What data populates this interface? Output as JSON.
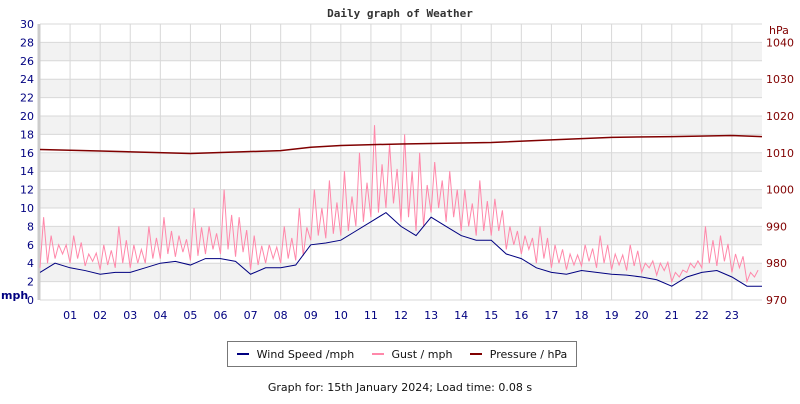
{
  "chart_data": {
    "type": "line",
    "title": "Daily graph of Weather",
    "ylabel": "mph",
    "y2label": "hPa",
    "ylim": [
      0,
      30
    ],
    "yticks": [
      0,
      2,
      4,
      6,
      8,
      10,
      12,
      14,
      16,
      18,
      20,
      22,
      24,
      26,
      28,
      30
    ],
    "y2lim": [
      970,
      1045
    ],
    "y2ticks": [
      970,
      980,
      990,
      1000,
      1010,
      1020,
      1030,
      1040
    ],
    "xlim": [
      0,
      24
    ],
    "xticks": [
      "01",
      "02",
      "03",
      "04",
      "05",
      "06",
      "07",
      "08",
      "09",
      "10",
      "11",
      "12",
      "13",
      "14",
      "15",
      "16",
      "17",
      "18",
      "19",
      "20",
      "21",
      "22",
      "23"
    ],
    "grid": true,
    "colors": {
      "wind": "#000080",
      "gust": "#ff88aa",
      "pressure": "#800000",
      "left_axis": "#000080",
      "right_axis": "#800000"
    },
    "series": [
      {
        "name": "Wind Speed /mph",
        "x_step_hours": 0.5,
        "values": [
          3,
          4,
          3.5,
          3.2,
          2.8,
          3,
          3,
          3.5,
          4,
          4.2,
          3.8,
          4.5,
          4.5,
          4.2,
          2.8,
          3.5,
          3.5,
          3.8,
          6,
          6.2,
          6.5,
          7.5,
          8.5,
          9.5,
          8,
          7,
          9,
          8,
          7,
          6.5,
          6.5,
          5,
          4.5,
          3.5,
          3,
          2.8,
          3.2,
          3,
          2.8,
          2.7,
          2.5,
          2.2,
          1.5,
          2.5,
          3,
          3.2,
          2.5,
          1.5
        ]
      },
      {
        "name": "Gust / mph",
        "x_step_hours": 0.5,
        "values": [
          9,
          6,
          7,
          5,
          6,
          8,
          6,
          8,
          9,
          7,
          10,
          8,
          12,
          9,
          7,
          6,
          8,
          10,
          12,
          13,
          14,
          16,
          19,
          17,
          18,
          16,
          15,
          14,
          12,
          13,
          11,
          8,
          7,
          8,
          6,
          5,
          6,
          7,
          5,
          6,
          4,
          4,
          3,
          4,
          8,
          7,
          5,
          3
        ]
      },
      {
        "name": "Pressure / hPa",
        "x_hours": [
          0,
          2,
          5,
          8,
          9,
          10,
          12,
          15,
          17,
          19,
          21,
          23,
          24
        ],
        "values": [
          1010.9,
          1010.5,
          1009.8,
          1010.6,
          1011.5,
          1012,
          1012.4,
          1012.8,
          1013.5,
          1014.2,
          1014.4,
          1014.7,
          1014.4
        ]
      }
    ]
  },
  "legend": {
    "wind": "Wind Speed /mph",
    "gust": "Gust / mph",
    "pressure": "Pressure / hPa"
  },
  "footer": "Graph for: 15th January 2024; Load time: 0.08 s"
}
